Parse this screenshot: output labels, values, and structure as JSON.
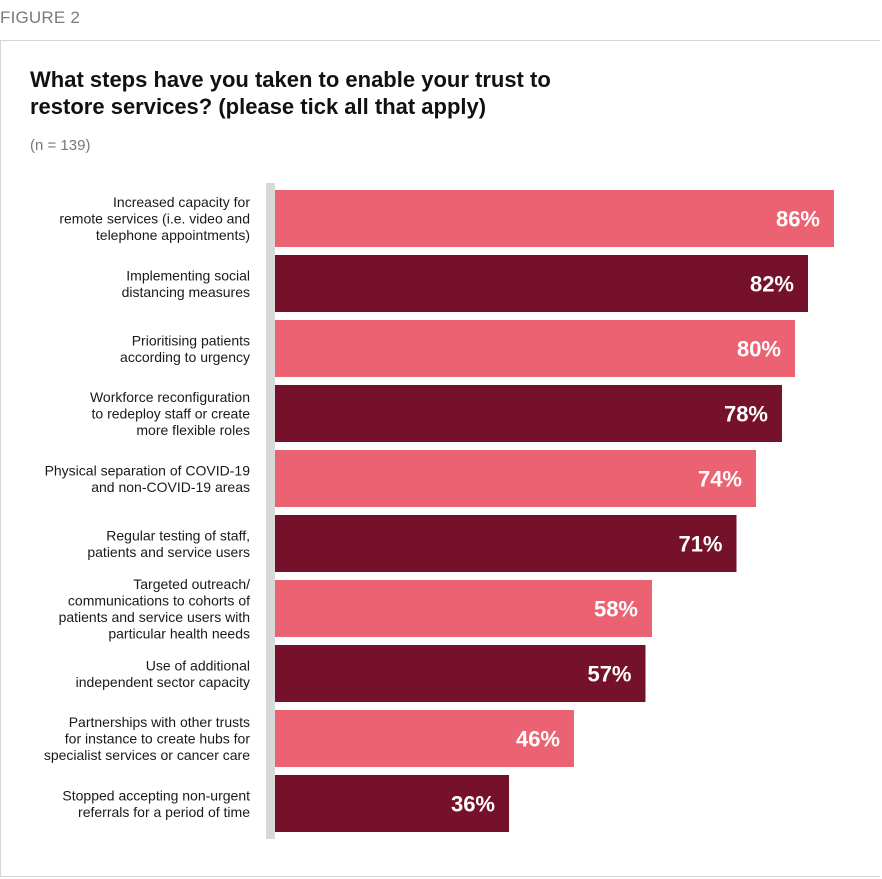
{
  "figure_label": "FIGURE 2",
  "chart_data": {
    "type": "bar",
    "orientation": "horizontal",
    "title": "What steps have you taken to enable your trust to restore services? (please tick all that apply)",
    "subtitle": "(n = 139)",
    "xlim": [
      0,
      100
    ],
    "value_suffix": "%",
    "colors": [
      "#EB6372",
      "#76112C"
    ],
    "categories": [
      [
        "Increased capacity for",
        "remote services (i.e. video and",
        "telephone appointments)"
      ],
      [
        "Implementing social",
        "distancing measures"
      ],
      [
        "Prioritising patients",
        "according to urgency"
      ],
      [
        "Workforce reconfiguration",
        "to redeploy staff or create",
        "more flexible roles"
      ],
      [
        "Physical separation of COVID-19",
        "and non-COVID-19 areas"
      ],
      [
        "Regular testing of staff,",
        "patients and service users"
      ],
      [
        "Targeted outreach/",
        "communications to cohorts of",
        "patients and service users with",
        "particular health needs"
      ],
      [
        "Use of additional",
        "independent sector capacity"
      ],
      [
        "Partnerships with other trusts",
        "for instance to create hubs for",
        "specialist services or cancer care"
      ],
      [
        "Stopped accepting non-urgent",
        "referrals for a period of time"
      ]
    ],
    "values": [
      86,
      82,
      80,
      78,
      74,
      71,
      58,
      57,
      46,
      36
    ],
    "value_labels": [
      "86%",
      "82%",
      "80%",
      "78%",
      "74%",
      "71%",
      "58%",
      "57%",
      "46%",
      "36%"
    ]
  }
}
